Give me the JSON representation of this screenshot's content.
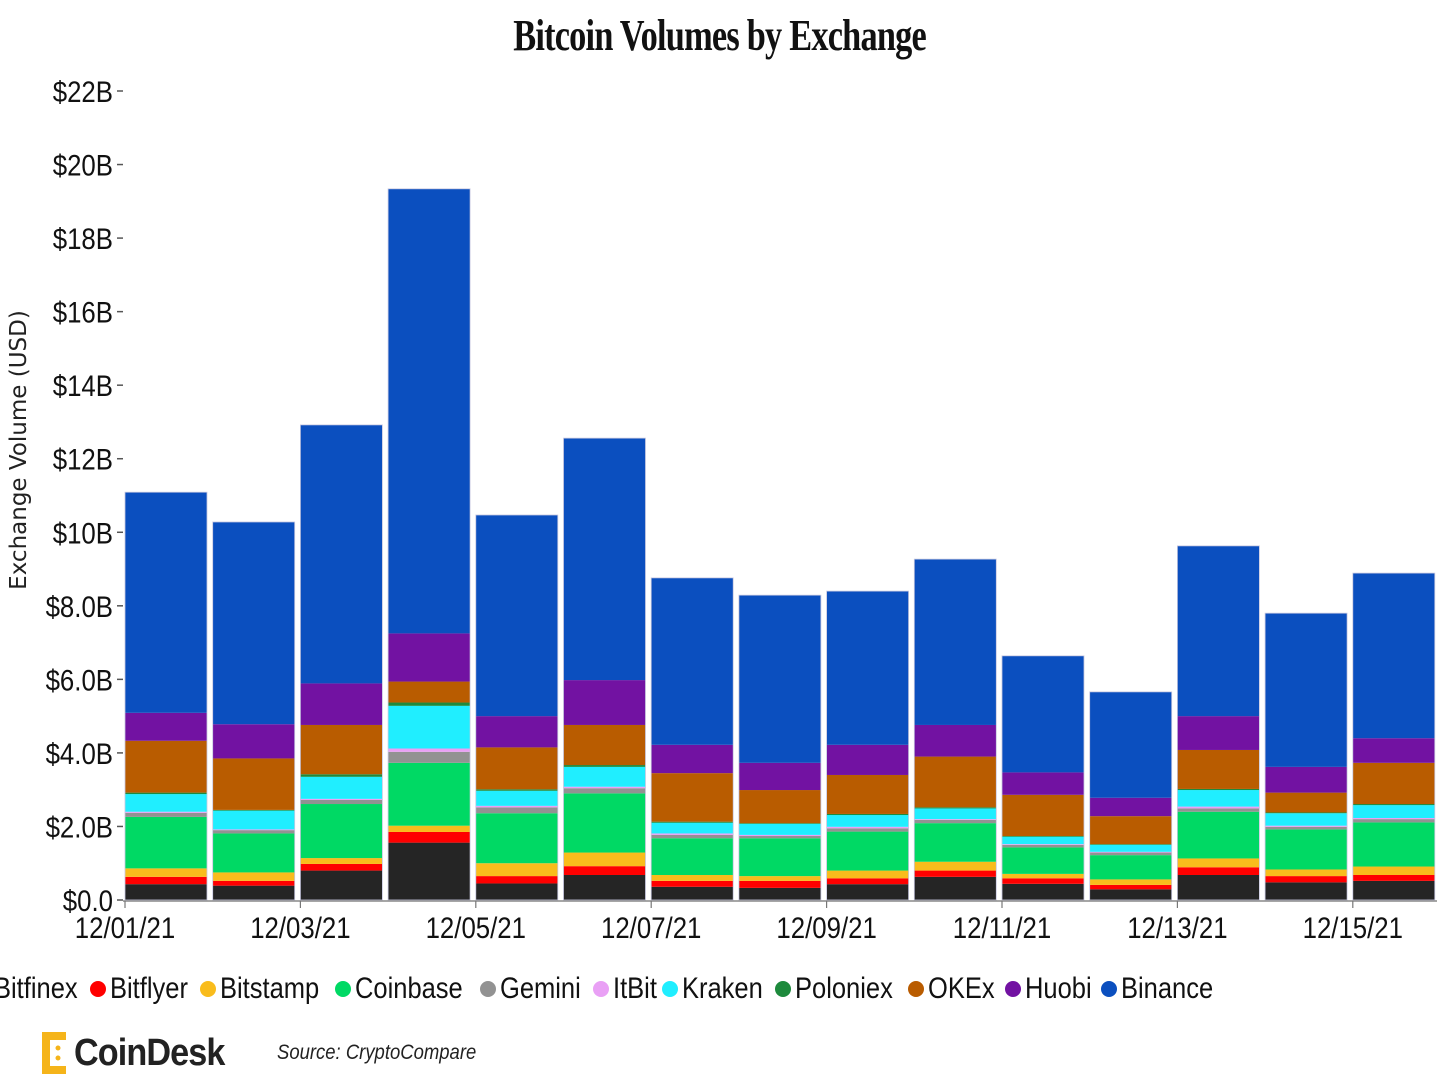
{
  "chart_data": {
    "type": "bar",
    "stacked": true,
    "title": "Bitcoin Volumes by Exchange",
    "xlabel": "",
    "ylabel": "Exchange Volume (USD)",
    "ylim": [
      0,
      22
    ],
    "yticks": [
      0,
      2,
      4,
      6,
      8,
      10,
      12,
      14,
      16,
      18,
      20,
      22
    ],
    "ytick_labels": [
      "$0.0",
      "$2.0B",
      "$4.0B",
      "$6.0B",
      "$8.0B",
      "$10B",
      "$12B",
      "$14B",
      "$16B",
      "$18B",
      "$20B",
      "$22B"
    ],
    "categories": [
      "12/01/21",
      "12/02/21",
      "12/03/21",
      "12/04/21",
      "12/05/21",
      "12/06/21",
      "12/07/21",
      "12/08/21",
      "12/09/21",
      "12/10/21",
      "12/11/21",
      "12/12/21",
      "12/13/21",
      "12/14/21",
      "12/15/21"
    ],
    "xtick_labels": [
      "12/01/21",
      "12/03/21",
      "12/05/21",
      "12/07/21",
      "12/09/21",
      "12/11/21",
      "12/13/21",
      "12/15/21"
    ],
    "units": "USD billions",
    "legend_position": "bottom",
    "series": [
      {
        "name": "Bitfinex",
        "color": "#252525",
        "values": [
          0.43,
          0.39,
          0.8,
          1.56,
          0.45,
          0.68,
          0.36,
          0.33,
          0.43,
          0.63,
          0.44,
          0.29,
          0.68,
          0.48,
          0.52
        ]
      },
      {
        "name": "Bitflyer",
        "color": "#ff0000",
        "values": [
          0.2,
          0.13,
          0.18,
          0.29,
          0.2,
          0.24,
          0.16,
          0.19,
          0.16,
          0.17,
          0.15,
          0.12,
          0.21,
          0.17,
          0.16
        ]
      },
      {
        "name": "Bitstamp",
        "color": "#f9bc1c",
        "values": [
          0.23,
          0.23,
          0.16,
          0.17,
          0.35,
          0.37,
          0.16,
          0.13,
          0.21,
          0.24,
          0.12,
          0.15,
          0.24,
          0.18,
          0.23
        ]
      },
      {
        "name": "Coinbase",
        "color": "#00d964",
        "values": [
          1.4,
          1.06,
          1.47,
          1.71,
          1.36,
          1.61,
          1.0,
          1.03,
          1.06,
          1.05,
          0.72,
          0.66,
          1.27,
          1.09,
          1.2
        ]
      },
      {
        "name": "Gemini",
        "color": "#929292",
        "values": [
          0.11,
          0.09,
          0.11,
          0.3,
          0.16,
          0.14,
          0.09,
          0.06,
          0.09,
          0.09,
          0.07,
          0.07,
          0.09,
          0.07,
          0.09
        ]
      },
      {
        "name": "ItBit",
        "color": "#e9a0f5",
        "values": [
          0.03,
          0.02,
          0.03,
          0.09,
          0.04,
          0.04,
          0.04,
          0.03,
          0.04,
          0.02,
          0.02,
          0.02,
          0.05,
          0.03,
          0.03
        ]
      },
      {
        "name": "Kraken",
        "color": "#20eeff",
        "values": [
          0.48,
          0.51,
          0.6,
          1.16,
          0.41,
          0.54,
          0.29,
          0.3,
          0.32,
          0.29,
          0.2,
          0.19,
          0.45,
          0.34,
          0.35
        ]
      },
      {
        "name": "Poloniex",
        "color": "#1d8a3c",
        "values": [
          0.04,
          0.02,
          0.07,
          0.09,
          0.04,
          0.05,
          0.03,
          0.02,
          0.03,
          0.03,
          0.02,
          0.02,
          0.03,
          0.02,
          0.03
        ]
      },
      {
        "name": "OKEx",
        "color": "#b95c00",
        "values": [
          1.41,
          1.4,
          1.34,
          0.57,
          1.14,
          1.09,
          1.32,
          0.9,
          1.06,
          1.38,
          1.12,
          0.76,
          1.06,
          0.54,
          1.12
        ]
      },
      {
        "name": "Huobi",
        "color": "#7212a2",
        "values": [
          0.76,
          0.93,
          1.13,
          1.31,
          0.85,
          1.22,
          0.77,
          0.74,
          0.82,
          0.86,
          0.61,
          0.5,
          0.92,
          0.7,
          0.67
        ]
      },
      {
        "name": "Binance",
        "color": "#0b4fbf",
        "values": [
          6.0,
          5.5,
          7.03,
          12.09,
          5.47,
          6.58,
          4.54,
          4.56,
          4.18,
          4.51,
          3.17,
          2.88,
          4.63,
          4.18,
          4.49
        ]
      }
    ]
  },
  "branding": {
    "logo": "CoinDesk",
    "source": "Source: CryptoCompare"
  }
}
